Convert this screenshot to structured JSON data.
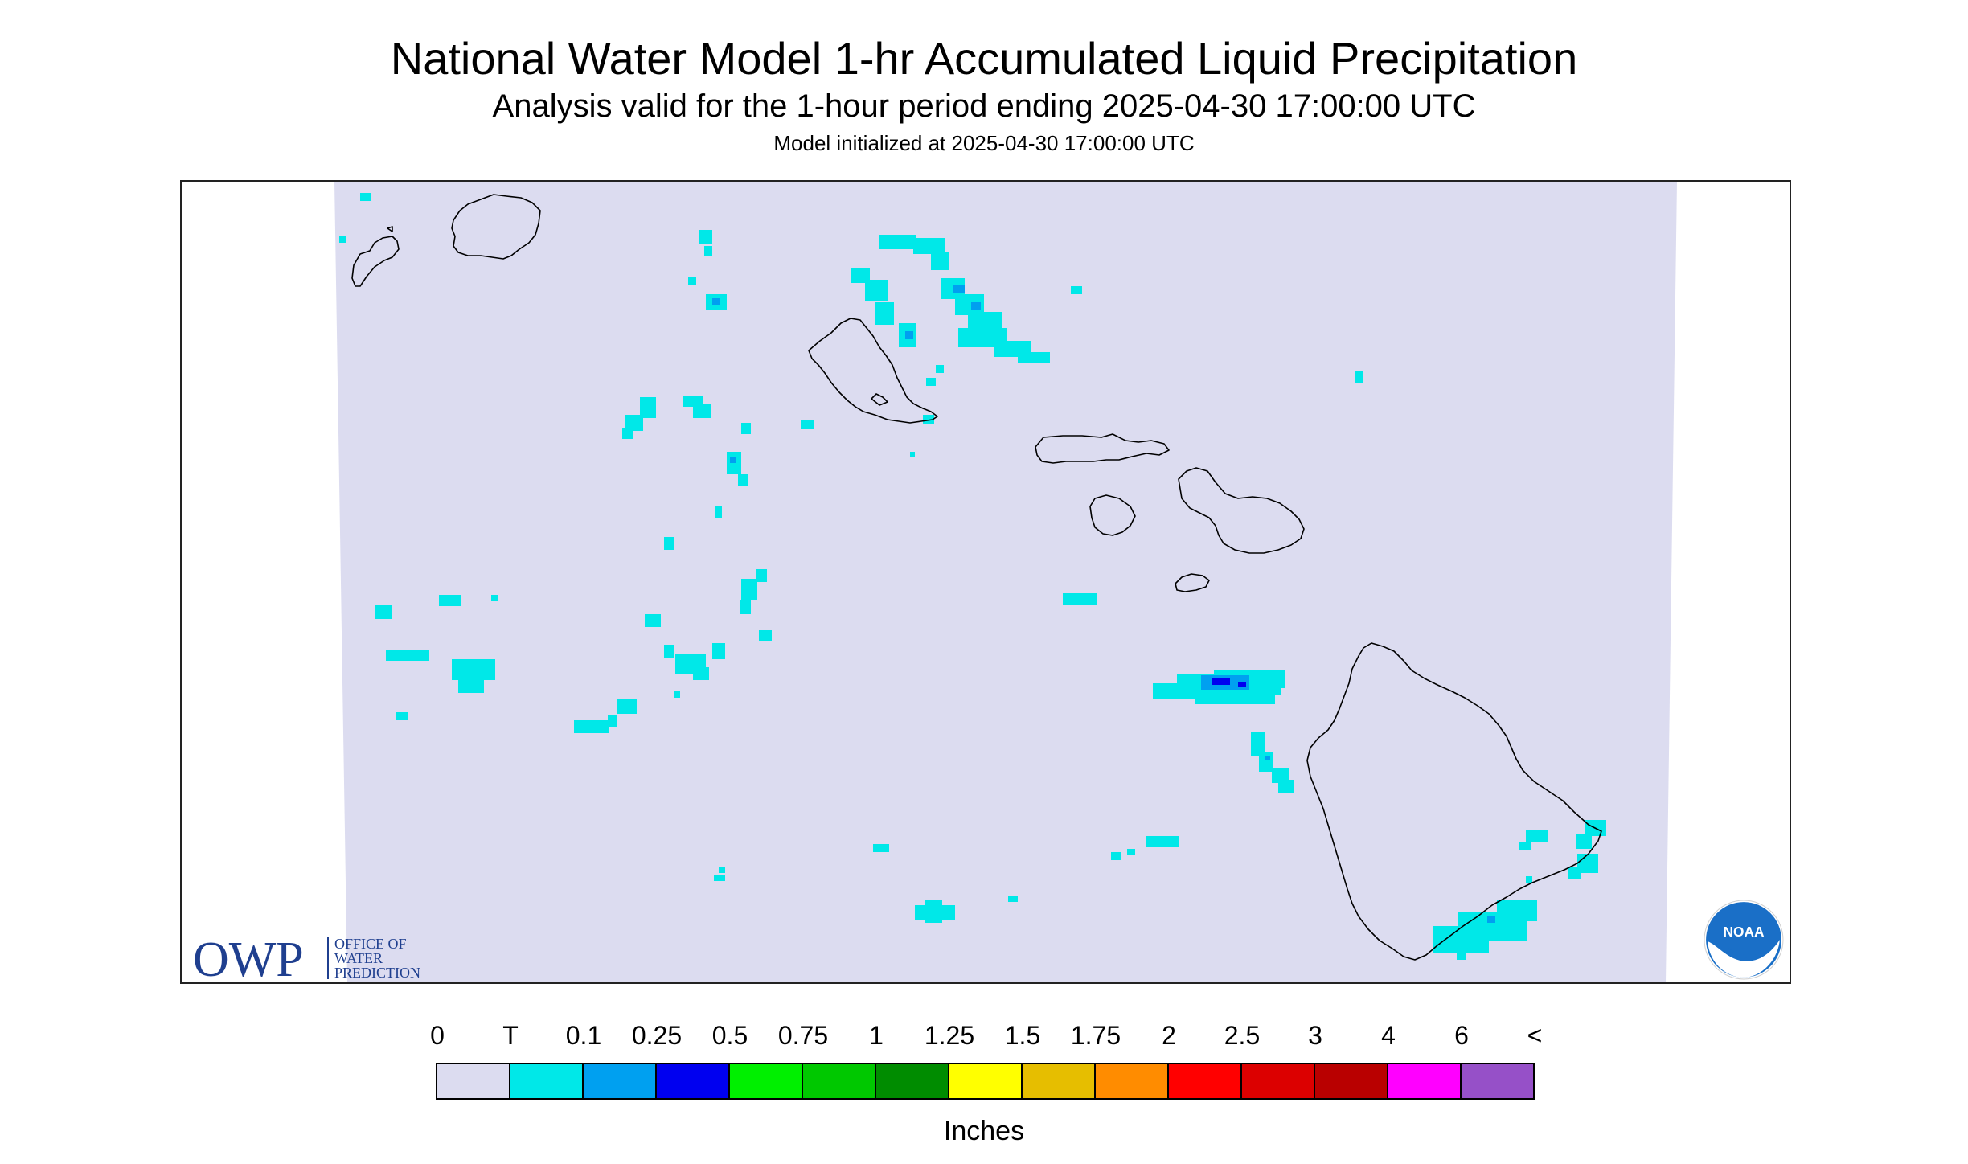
{
  "header": {
    "title": "National Water Model 1-hr Accumulated Liquid Precipitation",
    "subtitle": "Analysis valid for the 1-hour period ending 2025-04-30 17:00:00 UTC",
    "init_line": "Model initialized at 2025-04-30 17:00:00 UTC"
  },
  "map": {
    "region": "Hawaii",
    "background_color": "#dcdcf0",
    "coastline_color": "#000000",
    "precip_colors": {
      "trace": "#00e8e8",
      "light": "#00a0f0",
      "heavy": "#0000f0"
    }
  },
  "logos": {
    "owp": {
      "mark": "OWP",
      "line1": "OFFICE OF",
      "line2": "WATER",
      "line3": "PREDICTION",
      "color": "#1f3f8f"
    },
    "noaa": {
      "text": "NOAA",
      "color": "#1a6fc7"
    }
  },
  "legend": {
    "labels": [
      "0",
      "T",
      "0.1",
      "0.25",
      "0.5",
      "0.75",
      "1",
      "1.25",
      "1.5",
      "1.75",
      "2",
      "2.5",
      "3",
      "4",
      "6",
      "<"
    ],
    "colors": [
      "#dcdcf0",
      "#00e8e8",
      "#00a0f0",
      "#0000f0",
      "#00f000",
      "#00c800",
      "#008c00",
      "#ffff00",
      "#e6be00",
      "#ff8c00",
      "#ff0000",
      "#dc0000",
      "#b90000",
      "#ff00ff",
      "#9650c8"
    ],
    "units": "Inches"
  }
}
